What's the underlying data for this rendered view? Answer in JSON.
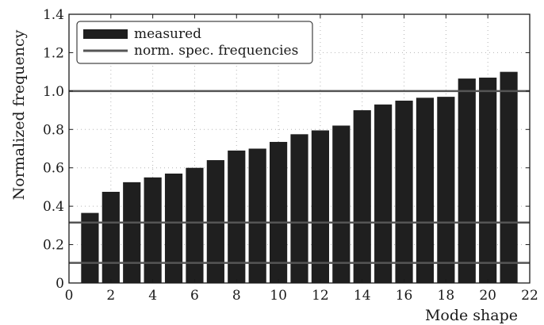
{
  "chart_data": {
    "type": "bar",
    "xlabel": "Mode shape",
    "ylabel": "Normalized frequency",
    "xlim": [
      0,
      22
    ],
    "ylim": [
      0,
      1.4
    ],
    "xticks": [
      "0",
      "2",
      "4",
      "6",
      "8",
      "10",
      "12",
      "14",
      "16",
      "18",
      "20",
      "22"
    ],
    "yticks": [
      "0",
      "0.2",
      "0.4",
      "0.6",
      "0.8",
      "1.0",
      "1.2",
      "1.4"
    ],
    "grid": true,
    "legend_position": "top-left",
    "series": [
      {
        "name": "measured",
        "type": "bar",
        "color": "#1f1f1f",
        "x": [
          1,
          2,
          3,
          4,
          5,
          6,
          7,
          8,
          9,
          10,
          11,
          12,
          13,
          14,
          15,
          16,
          17,
          18,
          19,
          20,
          21
        ],
        "values": [
          0.365,
          0.475,
          0.525,
          0.55,
          0.57,
          0.6,
          0.64,
          0.69,
          0.7,
          0.735,
          0.775,
          0.795,
          0.82,
          0.9,
          0.93,
          0.95,
          0.965,
          0.97,
          1.065,
          1.07,
          1.1
        ]
      },
      {
        "name": "norm. spec. frequencies",
        "type": "hline",
        "color": "#555555",
        "values": [
          0.105,
          0.315,
          1.0
        ]
      }
    ]
  }
}
